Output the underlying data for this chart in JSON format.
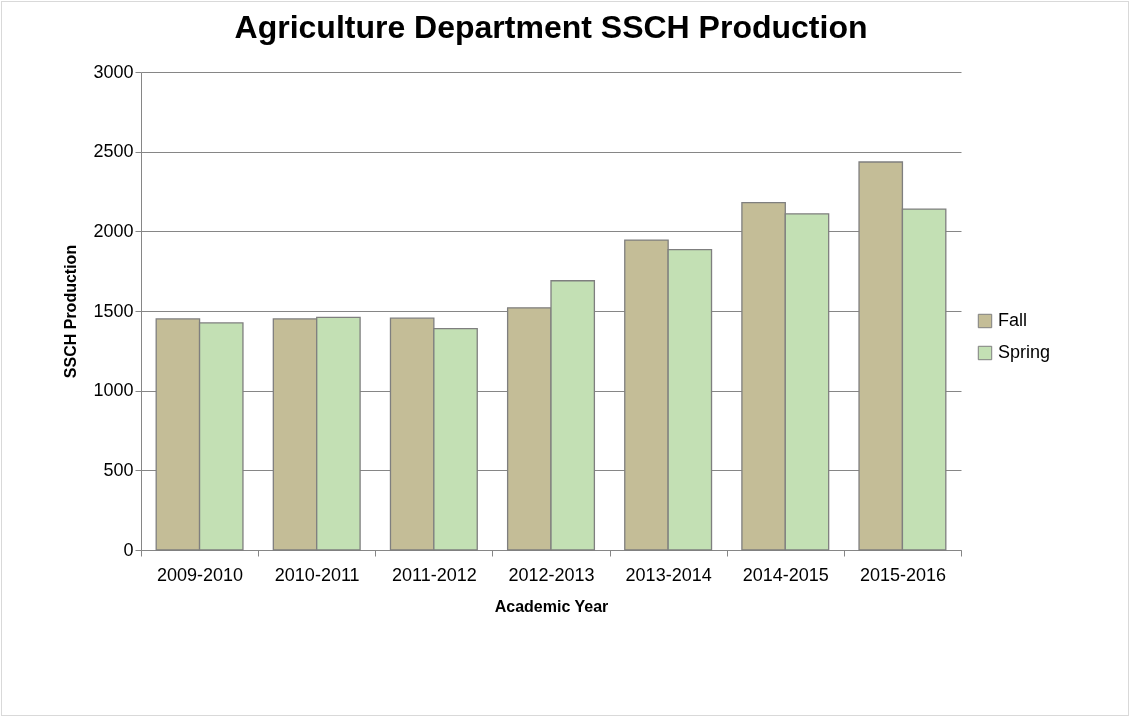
{
  "chart_data": {
    "type": "bar",
    "title": "Agriculture Department SSCH Production",
    "xlabel": "Academic Year",
    "ylabel": "SSCH Production",
    "categories": [
      "2009-2010",
      "2010-2011",
      "2011-2012",
      "2012-2013",
      "2013-2014",
      "2014-2015",
      "2015-2016"
    ],
    "series": [
      {
        "name": "Fall",
        "color": "#c4bd97",
        "values": [
          1450,
          1450,
          1455,
          1520,
          1945,
          2180,
          2435
        ]
      },
      {
        "name": "Spring",
        "color": "#c3e0b4",
        "values": [
          1425,
          1460,
          1390,
          1690,
          1885,
          2110,
          2140
        ]
      }
    ],
    "ylim": [
      0,
      3000
    ],
    "yticks": [
      0,
      500,
      1000,
      1500,
      2000,
      2500,
      3000
    ],
    "grid": "y",
    "legend": "right"
  }
}
